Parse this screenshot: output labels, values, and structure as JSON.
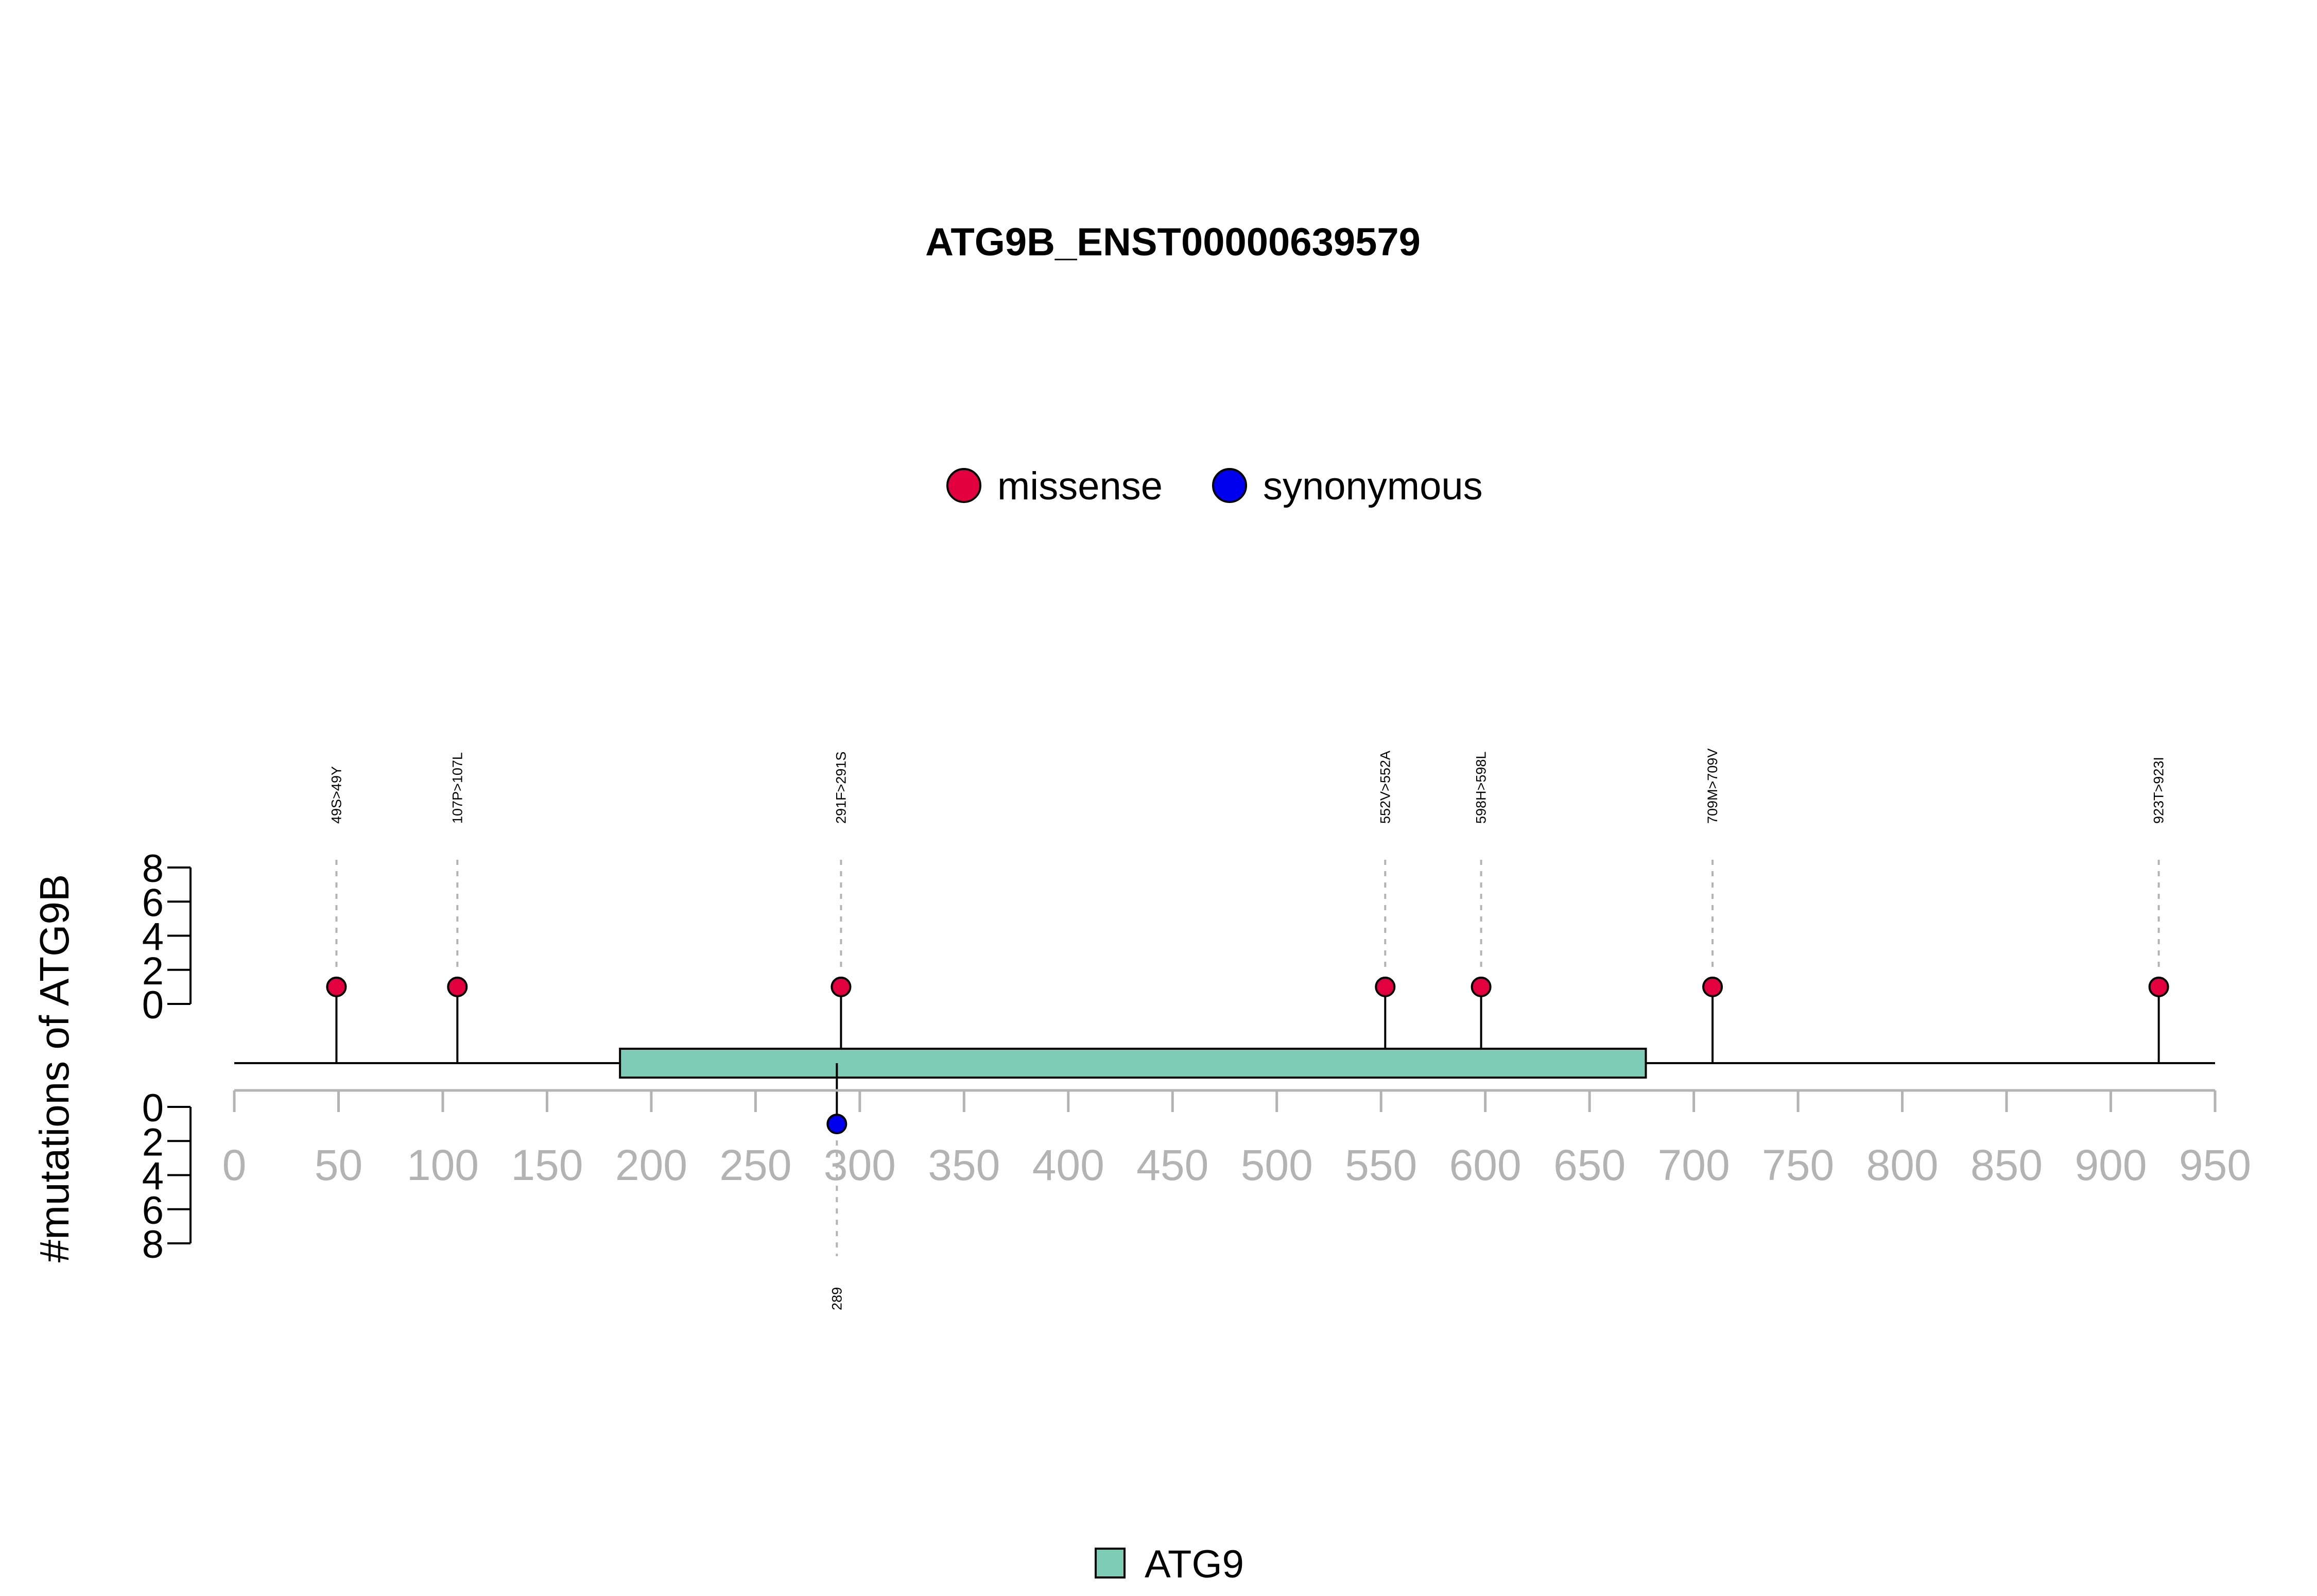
{
  "chart_data": {
    "type": "lollipop",
    "title": "ATG9B_ENST00000639579",
    "ylabel": "#mutations of ATG9B",
    "xlim": [
      0,
      950
    ],
    "x_ticks": [
      "0",
      "50",
      "100",
      "150",
      "200",
      "250",
      "300",
      "350",
      "400",
      "450",
      "500",
      "550",
      "600",
      "650",
      "700",
      "750",
      "800",
      "850",
      "900",
      "950"
    ],
    "y_ticks_top": [
      "0",
      "2",
      "4",
      "6",
      "8"
    ],
    "y_ticks_bottom": [
      "0",
      "2",
      "4",
      "6",
      "8"
    ],
    "ylim": [
      0,
      8
    ],
    "legend": [
      {
        "name": "missense",
        "color": "#e2003f"
      },
      {
        "name": "synonymous",
        "color": "#0000ee"
      }
    ],
    "domains": [
      {
        "name": "ATG9",
        "start": 185,
        "end": 677,
        "color": "#7ecbb6"
      }
    ],
    "mutations": [
      {
        "position": 49,
        "label": "49S>49Y",
        "type": "missense",
        "count": 1,
        "side": "top"
      },
      {
        "position": 107,
        "label": "107P>107L",
        "type": "missense",
        "count": 1,
        "side": "top"
      },
      {
        "position": 291,
        "label": "291F>291S",
        "type": "missense",
        "count": 1,
        "side": "top"
      },
      {
        "position": 552,
        "label": "552V>552A",
        "type": "missense",
        "count": 1,
        "side": "top"
      },
      {
        "position": 598,
        "label": "598H>598L",
        "type": "missense",
        "count": 1,
        "side": "top"
      },
      {
        "position": 709,
        "label": "709M>709V",
        "type": "missense",
        "count": 1,
        "side": "top"
      },
      {
        "position": 923,
        "label": "923T>923I",
        "type": "missense",
        "count": 1,
        "side": "top"
      },
      {
        "position": 289,
        "label": "289",
        "type": "synonymous",
        "count": 1,
        "side": "bottom"
      }
    ],
    "colors": {
      "missense": "#e2003f",
      "synonymous": "#0000ee",
      "axis": "#b3b3b3",
      "domain": "#7ecbb6"
    }
  }
}
